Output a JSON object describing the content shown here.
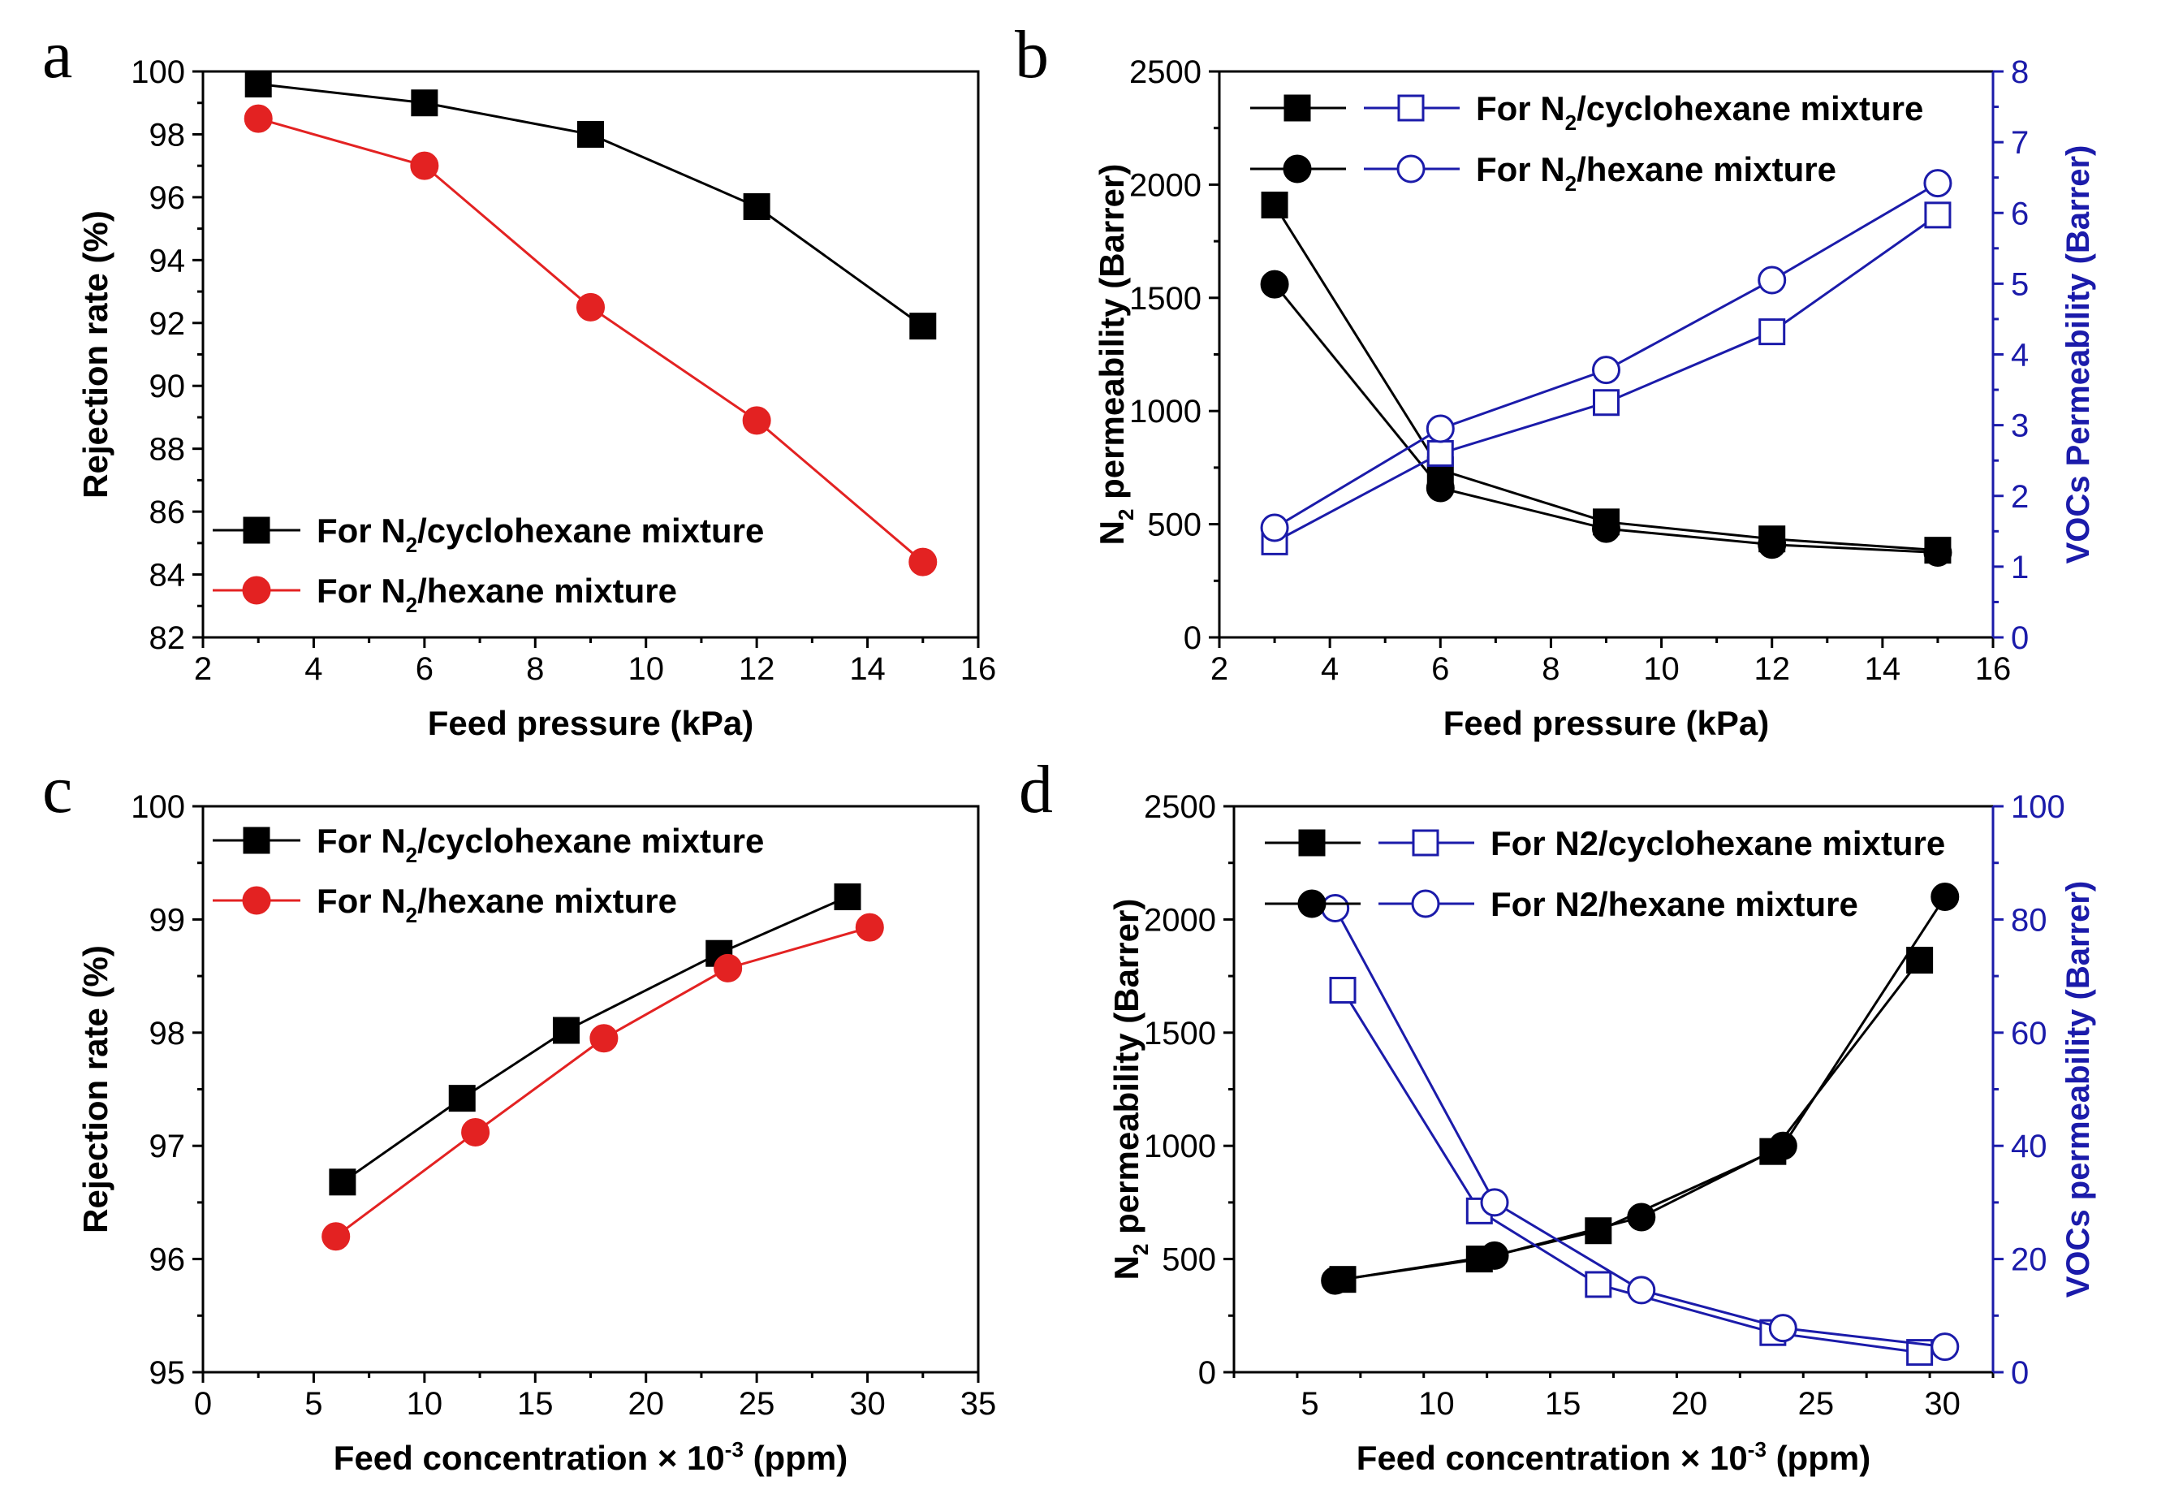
{
  "chart_data": [
    {
      "panel": "a",
      "type": "line",
      "xlabel": "Feed pressure (kPa)",
      "ylabel": "Rejection rate (%)",
      "xlim": [
        2,
        16
      ],
      "ylim": [
        82,
        100
      ],
      "xticks": [
        2,
        4,
        6,
        8,
        10,
        12,
        14,
        16
      ],
      "yticks": [
        82,
        84,
        86,
        88,
        90,
        92,
        94,
        96,
        98,
        100
      ],
      "legend_position": "bottom-left",
      "series": [
        {
          "name_parts": [
            "For N",
            "2",
            "/cyclohexane mixture"
          ],
          "color": "#000000",
          "marker": "square-filled",
          "axis": "left",
          "x": [
            3,
            6,
            9,
            12,
            15
          ],
          "values": [
            99.6,
            99.0,
            98.0,
            95.7,
            91.9
          ]
        },
        {
          "name_parts": [
            "For N",
            "2",
            "/hexane mixture"
          ],
          "color": "#e32222",
          "marker": "circle-filled",
          "axis": "left",
          "x": [
            3,
            6,
            9,
            12,
            15
          ],
          "values": [
            98.5,
            97.0,
            92.5,
            88.9,
            84.4
          ]
        }
      ]
    },
    {
      "panel": "b",
      "type": "line",
      "xlabel": "Feed pressure (kPa)",
      "ylabel_parts": [
        "N",
        "2",
        " permeability (Barrer)"
      ],
      "y2label": "VOCs Permeability (Barrer)",
      "y2color": "#1b1baa",
      "xlim": [
        2,
        16
      ],
      "ylim": [
        0,
        2500
      ],
      "y2lim": [
        0,
        8
      ],
      "xticks": [
        2,
        4,
        6,
        8,
        10,
        12,
        14,
        16
      ],
      "yticks": [
        0,
        500,
        1000,
        1500,
        2000,
        2500
      ],
      "y2ticks": [
        0,
        1,
        2,
        3,
        4,
        5,
        6,
        7,
        8
      ],
      "legend_position": "top-left",
      "legend": [
        {
          "name_parts": [
            "For N",
            "2",
            "/cyclohexane mixture"
          ],
          "marker": "square"
        },
        {
          "name_parts": [
            "For N",
            "2",
            "/hexane mixture"
          ],
          "marker": "circle"
        }
      ],
      "series": [
        {
          "name": "N2 permeability, N2/cyclohexane",
          "color": "#000000",
          "marker": "square-filled",
          "axis": "left",
          "x": [
            3,
            6,
            9,
            12,
            15
          ],
          "values": [
            1910,
            740,
            510,
            435,
            385
          ]
        },
        {
          "name": "N2 permeability, N2/hexane",
          "color": "#000000",
          "marker": "circle-filled",
          "axis": "left",
          "x": [
            3,
            6,
            9,
            12,
            15
          ],
          "values": [
            1560,
            660,
            480,
            410,
            375
          ]
        },
        {
          "name": "VOCs permeability, N2/cyclohexane",
          "color": "#1b1baa",
          "marker": "square-open",
          "axis": "right",
          "x": [
            3,
            6,
            9,
            12,
            15
          ],
          "values": [
            1.35,
            2.6,
            3.32,
            4.32,
            5.97
          ]
        },
        {
          "name": "VOCs permeability, N2/hexane",
          "color": "#1b1baa",
          "marker": "circle-open",
          "axis": "right",
          "x": [
            3,
            6,
            9,
            12,
            15
          ],
          "values": [
            1.55,
            2.95,
            3.78,
            5.05,
            6.42
          ]
        }
      ]
    },
    {
      "panel": "c",
      "type": "line",
      "xlabel_parts": [
        "Feed concentration × 10",
        "-3",
        " (ppm)"
      ],
      "ylabel": "Rejection rate (%)",
      "xlim": [
        0,
        35
      ],
      "ylim": [
        95,
        100
      ],
      "xticks": [
        0,
        5,
        10,
        15,
        20,
        25,
        30,
        35
      ],
      "yticks": [
        95,
        96,
        97,
        98,
        99,
        100
      ],
      "legend_position": "top-left",
      "series": [
        {
          "name_parts": [
            "For N",
            "2",
            "/cyclohexane mixture"
          ],
          "color": "#000000",
          "marker": "square-filled",
          "axis": "left",
          "x": [
            6.3,
            11.7,
            16.4,
            23.3,
            29.1
          ],
          "values": [
            96.68,
            97.42,
            98.02,
            98.7,
            99.2
          ]
        },
        {
          "name_parts": [
            "For N",
            "2",
            "/hexane mixture"
          ],
          "color": "#e32222",
          "marker": "circle-filled",
          "axis": "left",
          "x": [
            6.0,
            12.3,
            18.1,
            23.7,
            30.1
          ],
          "values": [
            96.2,
            97.12,
            97.95,
            98.57,
            98.93
          ]
        }
      ]
    },
    {
      "panel": "d",
      "type": "line",
      "xlabel_parts": [
        "Feed concentration × 10",
        "-3",
        " (ppm)"
      ],
      "ylabel_parts": [
        "N",
        "2",
        " permeability (Barrer)"
      ],
      "y2label": "VOCs permeability (Barrer)",
      "y2color": "#1b1baa",
      "xlim": [
        2,
        32
      ],
      "ylim": [
        0,
        2500
      ],
      "y2lim": [
        0,
        100
      ],
      "xticks": [
        5,
        10,
        15,
        20,
        25,
        30
      ],
      "yticks": [
        0,
        500,
        1000,
        1500,
        2000,
        2500
      ],
      "y2ticks": [
        0,
        20,
        40,
        60,
        80,
        100
      ],
      "legend_position": "top-left",
      "legend": [
        {
          "name_parts": [
            "For N2/cyclohexane mixture"
          ],
          "marker": "square"
        },
        {
          "name_parts": [
            "For N2/hexane mixture"
          ],
          "marker": "circle"
        }
      ],
      "series": [
        {
          "name": "N2 permeability, N2/cyclohexane",
          "color": "#000000",
          "marker": "square-filled",
          "axis": "left",
          "x": [
            6.3,
            11.7,
            16.4,
            23.3,
            29.1
          ],
          "values": [
            410,
            500,
            625,
            975,
            1820
          ]
        },
        {
          "name": "N2 permeability, N2/hexane",
          "color": "#000000",
          "marker": "circle-filled",
          "axis": "left",
          "x": [
            6.0,
            12.3,
            18.1,
            23.7,
            30.1
          ],
          "values": [
            405,
            515,
            685,
            1000,
            2100
          ]
        },
        {
          "name": "VOCs permeability, N2/cyclohexane",
          "color": "#1b1baa",
          "marker": "square-open",
          "axis": "right",
          "x": [
            6.3,
            11.7,
            16.4,
            23.3,
            29.1
          ],
          "values": [
            67.5,
            28.5,
            15.5,
            7.0,
            3.5
          ]
        },
        {
          "name": "VOCs permeability, N2/hexane",
          "color": "#1b1baa",
          "marker": "circle-open",
          "axis": "right",
          "x": [
            6.0,
            12.3,
            18.1,
            23.7,
            30.1
          ],
          "values": [
            82,
            30,
            14.5,
            7.8,
            4.5
          ]
        }
      ]
    }
  ]
}
